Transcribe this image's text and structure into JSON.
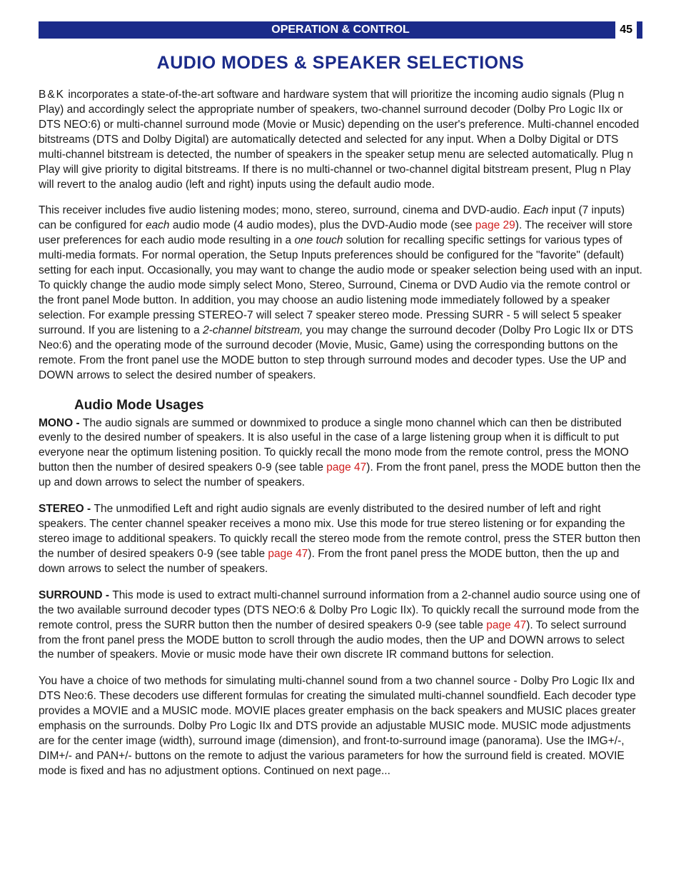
{
  "header": {
    "section_title": "OPERATION & CONTROL",
    "page_number": "45"
  },
  "title": "AUDIO MODES & SPEAKER SELECTIONS",
  "brand": "B&K",
  "para1_after_brand": " incorporates a state-of-the-art software and hardware system that will prioritize the incoming audio signals (Plug n Play) and accordingly select the appropriate number of speakers, two-channel surround decoder (Dolby Pro Logic IIx or DTS NEO:6) or multi-channel surround mode (Movie or Music) depending on the user's preference. Multi-channel encoded bitstreams (DTS and Dolby Digital) are automatically detected and selected for any input.  When a Dolby Digital or DTS multi-channel bitstream is detected, the number of speakers in the speaker setup menu are selected automatically. Plug n Play will give priority to digital bitstreams.  If there is no multi-channel or two-channel digital bitstream present, Plug n Play will revert to the analog audio (left and right) inputs using the default audio mode.",
  "para2_a": "This receiver includes five audio listening modes; mono, stereo, surround, cinema and DVD-audio.  ",
  "para2_each1": "Each",
  "para2_b": " input (7 inputs) can be configured for ",
  "para2_each2": "each",
  "para2_c": " audio mode (4 audio modes), plus the DVD-Audio mode (see ",
  "para2_link1": "page 29",
  "para2_d": ").  The receiver will store user preferences for each audio mode resulting in a ",
  "para2_onetouch": "one touch",
  "para2_e": " solution for recalling specific settings for various types of multi-media formats.  For normal operation, the Setup Inputs preferences should be configured for the \"favorite\" (default) setting for each input.  Occasionally, you may want to change the audio mode or speaker selection being used with an input.  To quickly change the audio mode simply select Mono, Stereo, Surround, Cinema or DVD Audio via the remote control or the front panel Mode button.  In addition, you may choose an audio listening mode immediately followed by a speaker selection.  For example pressing STEREO-7 will select 7 speaker stereo mode. Pressing SURR - 5 will select 5 speaker surround.  If you are listening to a ",
  "para2_bitstream": "2-channel bitstream,",
  "para2_f": " you may change the surround decoder (Dolby Pro Logic IIx or DTS Neo:6) and the operating mode of the surround decoder (Movie, Music, Game) using the corresponding buttons on the remote. From the front panel use the MODE button to step through surround modes and decoder types. Use the UP and DOWN arrows to select the desired number of speakers.",
  "sub_title": "Audio Mode Usages",
  "mono_label": "MONO - ",
  "mono_a": "The audio signals are summed or downmixed to produce a single mono channel which can then be distributed evenly to the desired number of speakers. It is also useful in the case of a large listening group when it is difficult to put everyone near the optimum listening position.  To quickly recall the mono mode from the remote control, press the MONO button then the number of desired speakers 0-9 (see table ",
  "mono_link": "page 47",
  "mono_b": "). From the front panel, press the MODE button then the up and down arrows to select the number of speakers.",
  "stereo_label": "STEREO - ",
  "stereo_a": "The unmodified Left and right audio signals are evenly distributed to the desired number of left and right speakers. The center channel speaker receives a mono mix. Use this mode for true stereo listening or for expanding the stereo image to additional speakers.  To quickly recall the stereo mode from the remote control, press the STER button then the number of desired speakers 0-9 (see table ",
  "stereo_link": "page 47",
  "stereo_b": "). From the front panel press the MODE button, then the up and down arrows to select the number of speakers.",
  "surround_label": "SURROUND - ",
  "surround_a": "This mode is used to extract multi-channel surround information from a 2-channel audio source using one of the two available surround decoder types (DTS NEO:6 & Dolby Pro Logic IIx).  To quickly recall the surround mode from the remote control, press the SURR button then the number of desired speakers 0-9 (see table ",
  "surround_link": "page 47",
  "surround_b": "). To select surround from the front panel press the MODE button to scroll through the audio modes, then the UP and DOWN arrows to select the number of speakers. Movie or music mode have their own discrete IR command buttons for selection.",
  "para_last": "You have a choice of two methods for simulating multi-channel sound from a two channel source - Dolby Pro Logic IIx and DTS Neo:6. These decoders use different formulas for creating the simulated multi-channel soundfield. Each decoder type provides a MOVIE and a MUSIC mode.  MOVIE places greater emphasis on the back speakers and MUSIC places greater emphasis on the surrounds.  Dolby Pro Logic IIx and DTS provide an adjustable MUSIC mode. MUSIC mode adjustments are for the center image (width), surround image (dimension), and front-to-surround image (panorama).  Use the IMG+/-,  DIM+/- and PAN+/- buttons on the remote to adjust the various parameters for how the surround field is created.  MOVIE mode is fixed and has no adjustment options. Continued on next page...",
  "colors": {
    "header_bg": "#1b2b8a",
    "header_text": "#ffffff",
    "title_color": "#1b2b8a",
    "link_color": "#d02020",
    "body_text": "#1a1a1a",
    "page_bg": "#ffffff"
  },
  "typography": {
    "body_fontsize": 15.5,
    "title_fontsize": 25,
    "sub_title_fontsize": 19,
    "header_fontsize": 16,
    "line_height": 1.35
  }
}
